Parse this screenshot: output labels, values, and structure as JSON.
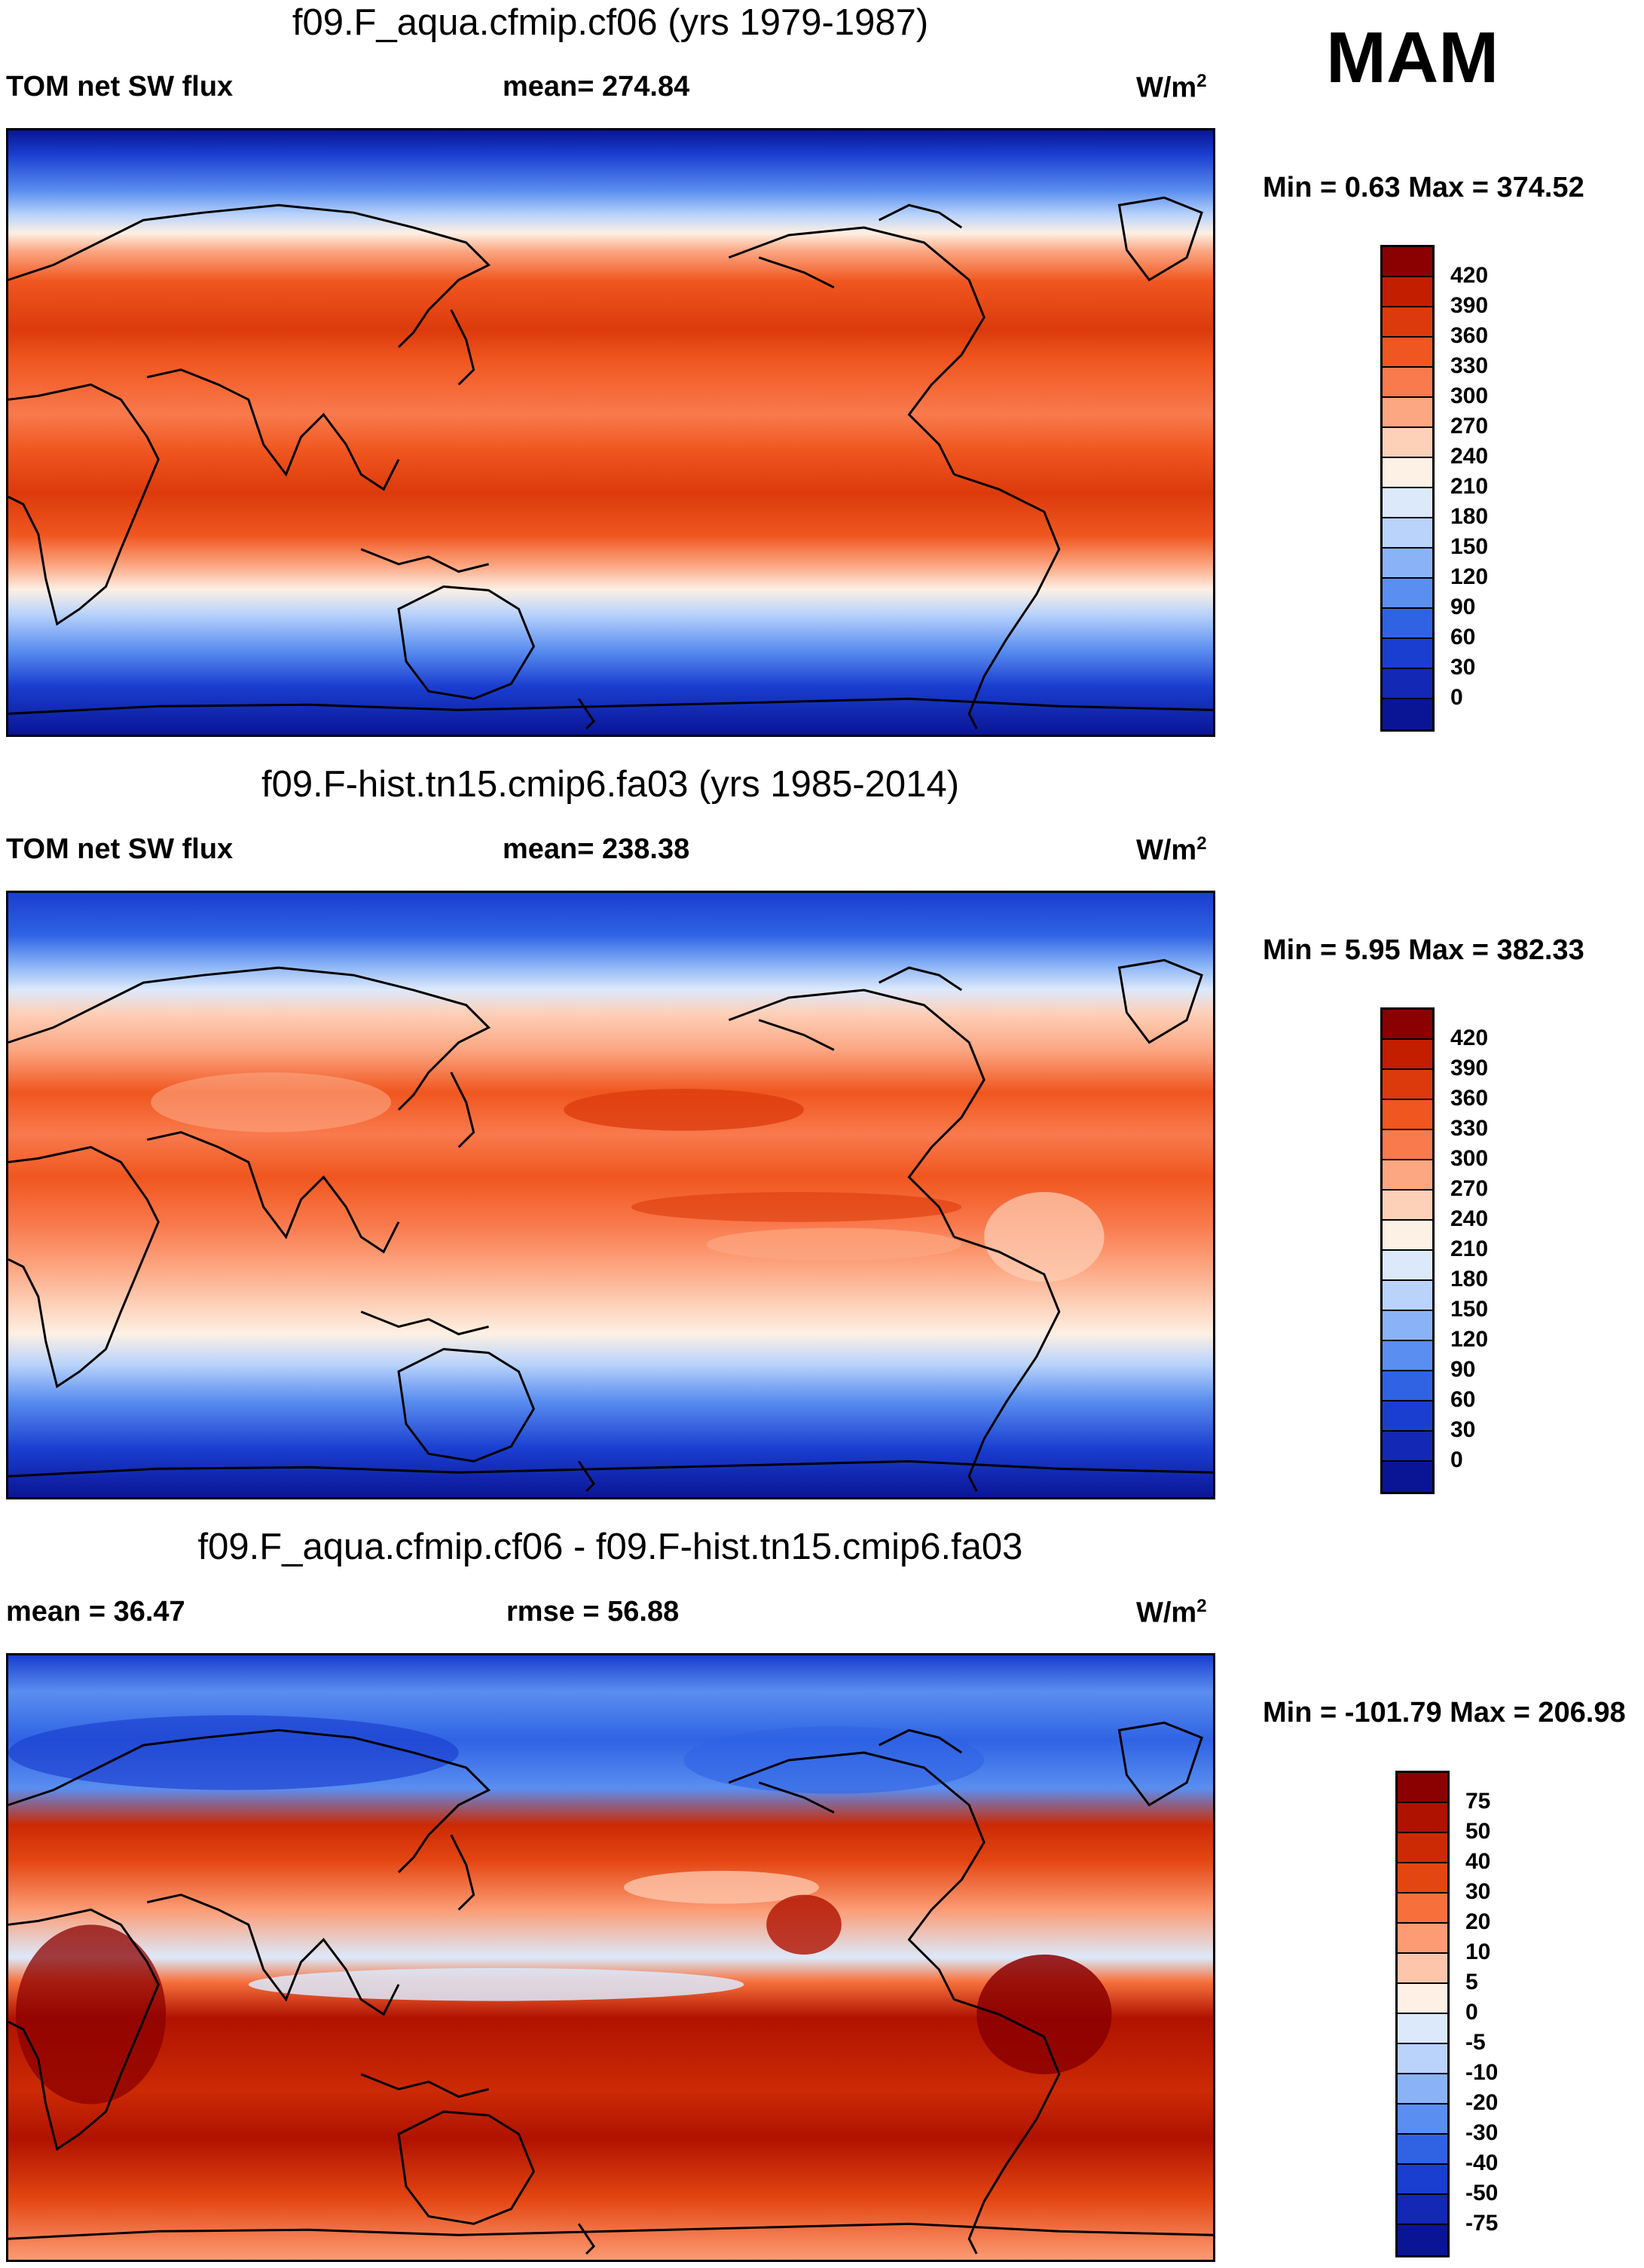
{
  "season": "MAM",
  "panels": [
    {
      "title": "f09.F_aqua.cfmip.cf06 (yrs 1979-1987)",
      "left_label": "TOM net SW flux",
      "center_label": "mean= 274.84",
      "units": "W/m",
      "units_sup": "2",
      "minmax": "Min =   0.63 Max = 374.52",
      "map_name": "aquaplanet-sw-flux-map",
      "colorbar": {
        "ticks": [
          "420",
          "390",
          "360",
          "330",
          "300",
          "270",
          "240",
          "210",
          "180",
          "150",
          "120",
          "90",
          "60",
          "30",
          "0"
        ],
        "colors": [
          "#8b0000",
          "#c41e00",
          "#dc3a0c",
          "#f0561f",
          "#f97a4d",
          "#fca682",
          "#fdd0b8",
          "#fdf0e4",
          "#dce9fb",
          "#b9d3fb",
          "#8ab3f7",
          "#5a8ef0",
          "#2f63e4",
          "#1a3ed0",
          "#1328b4",
          "#0a1595"
        ]
      }
    },
    {
      "title": "f09.F-hist.tn15.cmip6.fa03 (yrs 1985-2014)",
      "left_label": "TOM net SW flux",
      "center_label": "mean= 238.38",
      "units": "W/m",
      "units_sup": "2",
      "minmax": "Min =   5.95 Max = 382.33",
      "map_name": "historical-sw-flux-map",
      "colorbar": {
        "ticks": [
          "420",
          "390",
          "360",
          "330",
          "300",
          "270",
          "240",
          "210",
          "180",
          "150",
          "120",
          "90",
          "60",
          "30",
          "0"
        ],
        "colors": [
          "#8b0000",
          "#c41e00",
          "#dc3a0c",
          "#f0561f",
          "#f97a4d",
          "#fca682",
          "#fdd0b8",
          "#fdf0e4",
          "#dce9fb",
          "#b9d3fb",
          "#8ab3f7",
          "#5a8ef0",
          "#2f63e4",
          "#1a3ed0",
          "#1328b4",
          "#0a1595"
        ]
      }
    },
    {
      "title": "f09.F_aqua.cfmip.cf06 - f09.F-hist.tn15.cmip6.fa03",
      "left_label": "mean =  36.47",
      "center_label": "rmse =  56.88",
      "units": "W/m",
      "units_sup": "2",
      "minmax": "Min = -101.79 Max = 206.98",
      "map_name": "difference-sw-flux-map",
      "colorbar": {
        "ticks": [
          "75",
          "50",
          "40",
          "30",
          "20",
          "10",
          "5",
          "0",
          "-5",
          "-10",
          "-20",
          "-30",
          "-40",
          "-50",
          "-75"
        ],
        "colors": [
          "#8b0000",
          "#b01200",
          "#cc2a05",
          "#e44612",
          "#f7703c",
          "#fc9b74",
          "#fdc6aa",
          "#fef0e4",
          "#dce9fb",
          "#b9d3fb",
          "#8ab3f7",
          "#5a8ef0",
          "#2f63e4",
          "#1a3ed0",
          "#1328b4",
          "#0a1595"
        ]
      }
    }
  ]
}
